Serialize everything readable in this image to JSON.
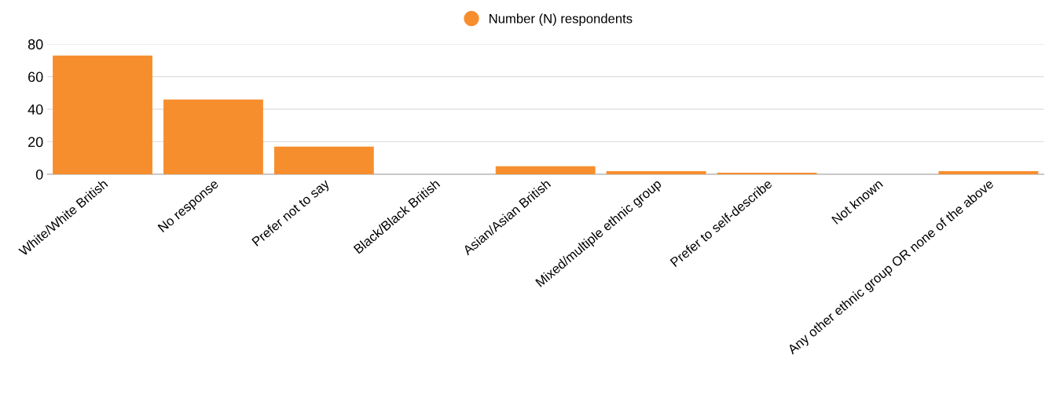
{
  "chart_data": {
    "type": "bar",
    "categories": [
      "White/White British",
      "No response",
      "Prefer not to say",
      "Black/Black British",
      "Asian/Asian British",
      "Mixed/multiple ethnic group",
      "Prefer to self-describe",
      "Not known",
      "Any other ethnic group OR none of the above"
    ],
    "series": [
      {
        "name": "Number (N) respondents",
        "color": "#f78e2e",
        "values": [
          73,
          46,
          17,
          0,
          5,
          2,
          1,
          0,
          2
        ]
      }
    ],
    "ylim": [
      0,
      80
    ],
    "yticks": [
      0,
      20,
      40,
      60,
      80
    ],
    "grid": "y",
    "legend": "top"
  }
}
